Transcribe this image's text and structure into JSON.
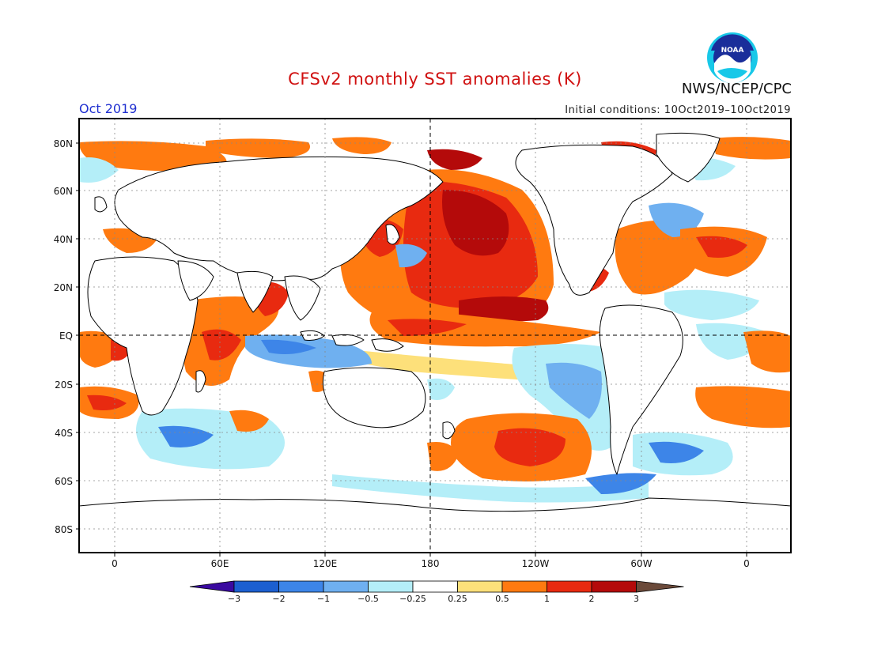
{
  "header": {
    "title": "CFSv2 monthly SST anomalies (K)",
    "month": "Oct 2019",
    "initial_conditions": "Initial conditions: 10Oct2019–10Oct2019",
    "agency": "NWS/NCEP/CPC",
    "logo_text": "NOAA",
    "logo_icon": "noaa-logo-icon"
  },
  "map": {
    "lat_labels": [
      "80N",
      "60N",
      "40N",
      "20N",
      "EQ",
      "20S",
      "40S",
      "60S",
      "80S"
    ],
    "lon_labels": [
      "0",
      "60E",
      "120E",
      "180",
      "120W",
      "60W",
      "0"
    ]
  },
  "colorbar": {
    "tick_labels": [
      "−3",
      "−2",
      "−1",
      "−0.5",
      "−0.25",
      "0.25",
      "0.5",
      "1",
      "2",
      "3"
    ],
    "colors": [
      "#3a0aa0",
      "#1c5fd0",
      "#3d85e8",
      "#6fb0f0",
      "#b4eef8",
      "#ffffff",
      "#fde07a",
      "#ff7a10",
      "#e82a10",
      "#b40a0a",
      "#6b4a3a"
    ]
  }
}
